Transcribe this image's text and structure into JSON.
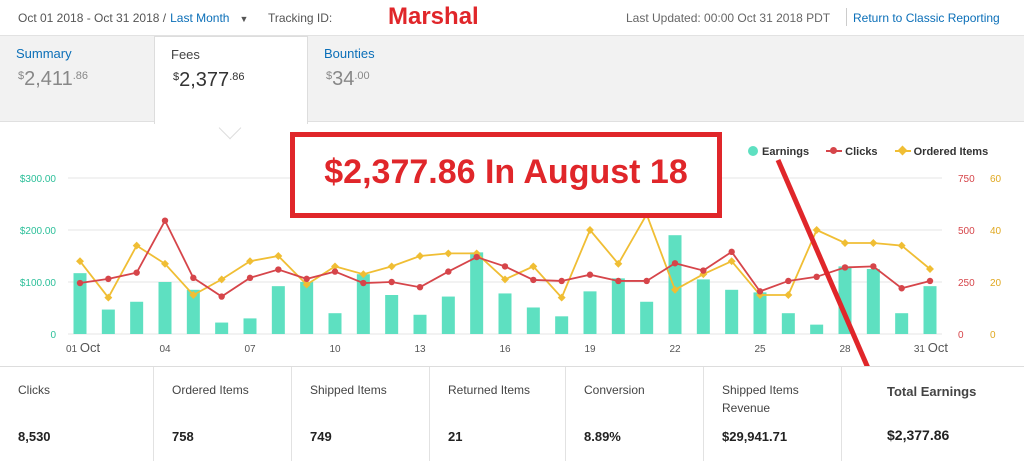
{
  "header": {
    "date_range": "Oct 01 2018 -  Oct 31 2018 /",
    "range_link": "Last Month",
    "tracking_label": "Tracking ID:",
    "user_name": "Marshal",
    "last_updated": "Last Updated: 00:00  Oct 31 2018 PDT",
    "classic_link": "Return to Classic Reporting"
  },
  "tabs": [
    {
      "label": "Summary",
      "currency": "$",
      "whole": "2,411",
      "cents": ".86"
    },
    {
      "label": "Fees",
      "currency": "$",
      "whole": "2,377",
      "cents": ".86"
    },
    {
      "label": "Bounties",
      "currency": "$",
      "whole": "34",
      "cents": ".00"
    }
  ],
  "callout": "$2,377.86 In August 18",
  "legend": [
    "Earnings",
    "Clicks",
    "Ordered Items"
  ],
  "colors": {
    "earnings": "#5ee0c1",
    "clicks": "#d6454a",
    "ordered": "#f0be34",
    "accent": "#e0262a",
    "link": "#0b6fb8"
  },
  "chart_data": {
    "type": "bar",
    "x": [
      1,
      2,
      3,
      4,
      5,
      6,
      7,
      8,
      9,
      10,
      11,
      12,
      13,
      14,
      15,
      16,
      17,
      18,
      19,
      20,
      21,
      22,
      23,
      24,
      25,
      26,
      27,
      28,
      29,
      30,
      31
    ],
    "x_tick_labels": [
      "01 Oct",
      "04",
      "07",
      "10",
      "13",
      "16",
      "19",
      "22",
      "25",
      "28",
      "31 Oct"
    ],
    "x_tick_positions": [
      1,
      4,
      7,
      10,
      13,
      16,
      19,
      22,
      25,
      28,
      31
    ],
    "y_left_ticks": [
      "$300.00",
      "$200.00",
      "$100.00",
      "0"
    ],
    "y_left_range": [
      0,
      300
    ],
    "y_clicks_ticks": [
      "750",
      "500",
      "250",
      "0"
    ],
    "y_clicks_range": [
      0,
      750
    ],
    "y_ordered_ticks": [
      "60",
      "40",
      "20",
      "0"
    ],
    "y_ordered_range": [
      0,
      60
    ],
    "series": [
      {
        "name": "Earnings",
        "type": "bar",
        "axis": "left",
        "values": [
          117,
          47,
          62,
          100,
          85,
          22,
          30,
          92,
          100,
          40,
          115,
          75,
          37,
          72,
          157,
          78,
          51,
          34,
          82,
          107,
          62,
          190,
          105,
          85,
          80,
          40,
          18,
          130,
          125,
          40,
          92
        ]
      },
      {
        "name": "Clicks",
        "type": "line",
        "axis": "clicks",
        "values": [
          245,
          265,
          295,
          545,
          270,
          180,
          270,
          310,
          265,
          300,
          245,
          250,
          225,
          300,
          370,
          325,
          260,
          255,
          285,
          255,
          255,
          340,
          305,
          395,
          205,
          255,
          275,
          320,
          325,
          220,
          255
        ]
      },
      {
        "name": "Ordered Items",
        "type": "line",
        "axis": "ordered",
        "values": [
          28,
          14,
          34,
          27,
          15,
          21,
          28,
          30,
          19,
          26,
          23,
          26,
          30,
          31,
          31,
          21,
          26,
          14,
          40,
          27,
          46,
          17,
          23,
          28,
          15,
          15,
          40,
          35,
          35,
          34,
          25
        ]
      }
    ],
    "grid": "horizontal",
    "legend_position": "top-right"
  },
  "stats": [
    {
      "label": "Clicks",
      "value": "8,530"
    },
    {
      "label": "Ordered Items",
      "value": "758"
    },
    {
      "label": "Shipped Items",
      "value": "749"
    },
    {
      "label": "Returned Items",
      "value": "21"
    },
    {
      "label": "Conversion",
      "value": "8.89%"
    },
    {
      "label": "Shipped Items Revenue",
      "value": "$29,941.71"
    },
    {
      "label": "Total Earnings",
      "value": "$2,377.86"
    }
  ]
}
